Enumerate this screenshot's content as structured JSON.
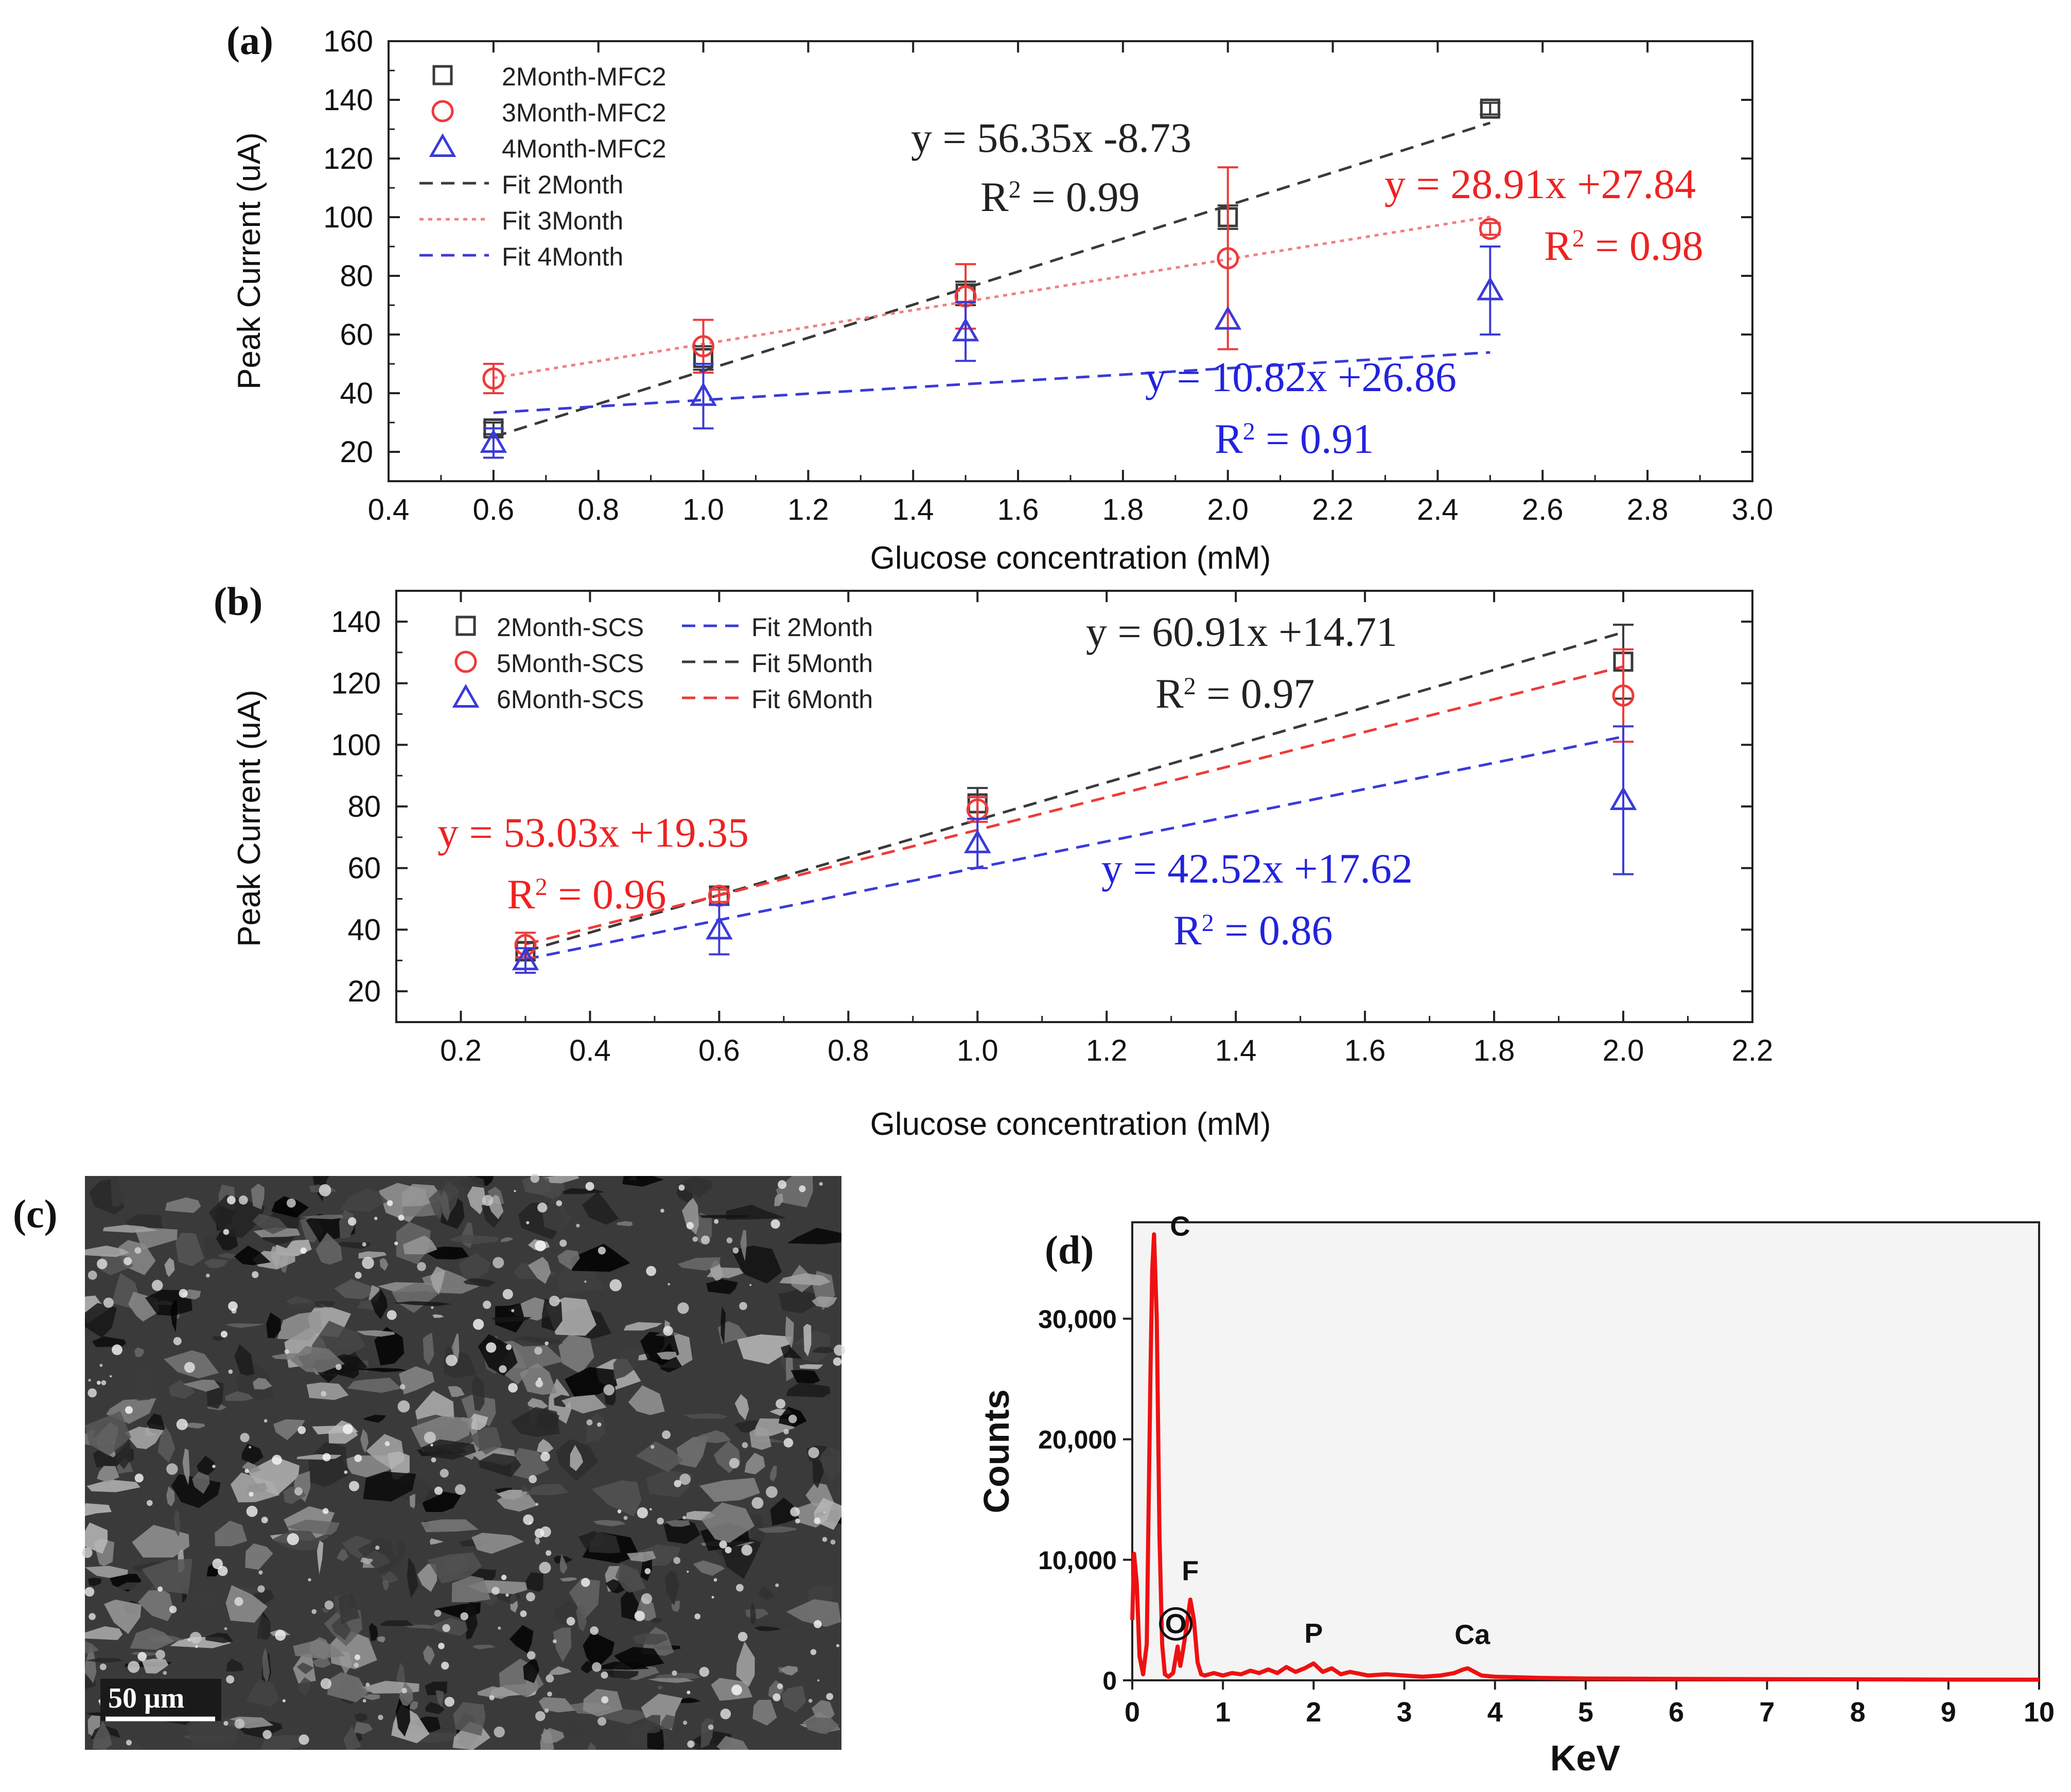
{
  "chart_data": [
    {
      "panel": "(a)",
      "type": "scatter",
      "xlabel": "Glucose concentration (mM)",
      "ylabel": "Peak Current (uA)",
      "xlim": [
        0.4,
        3.0
      ],
      "ylim": [
        10,
        160
      ],
      "xticks": [
        0.4,
        0.6,
        0.8,
        1.0,
        1.2,
        1.4,
        1.6,
        1.8,
        2.0,
        2.2,
        2.4,
        2.6,
        2.8,
        3.0
      ],
      "xtick_labels": [
        "0.4",
        "0.6",
        "0.8",
        "1.0",
        "1.2",
        "1.4",
        "1.6",
        "1.8",
        "2.0",
        "2.2",
        "2.4",
        "2.6",
        "2.8",
        "3.0"
      ],
      "yticks": [
        20,
        40,
        60,
        80,
        100,
        120,
        140,
        160
      ],
      "ytick_labels": [
        "20",
        "40",
        "60",
        "80",
        "100",
        "120",
        "140",
        "160"
      ],
      "legend_position": "top-left",
      "series": [
        {
          "name": "2Month-MFC2",
          "marker": "square",
          "color": "#3a3a3a",
          "x": [
            0.6,
            1.0,
            1.5,
            2.0,
            2.5
          ],
          "y": [
            28,
            52,
            74,
            100,
            137
          ],
          "err": [
            2,
            4,
            4,
            4,
            2
          ]
        },
        {
          "name": "3Month-MFC2",
          "marker": "circle",
          "color": "#ee3a3a",
          "x": [
            0.6,
            1.0,
            1.5,
            2.0,
            2.5
          ],
          "y": [
            45,
            56,
            73,
            86,
            96
          ],
          "err": [
            5,
            9,
            11,
            31,
            2
          ]
        },
        {
          "name": "4Month-MFC2",
          "marker": "triangle",
          "color": "#3a3ad8",
          "x": [
            0.6,
            1.0,
            1.5,
            2.0,
            2.5
          ],
          "y": [
            23,
            39,
            61,
            65,
            75
          ],
          "err": [
            5,
            11,
            10,
            0,
            15
          ]
        }
      ],
      "fits": [
        {
          "name": "Fit 2Month",
          "style": "dash",
          "color": "#3a3a3a",
          "slope": 56.35,
          "intercept": -8.73,
          "x_range": [
            0.6,
            2.5
          ]
        },
        {
          "name": "Fit 3Month",
          "style": "dot",
          "color": "#f08080",
          "slope": 28.91,
          "intercept": 27.84,
          "x_range": [
            0.6,
            2.5
          ]
        },
        {
          "name": "Fit 4Month",
          "style": "dash",
          "color": "#3a3ad8",
          "slope": 10.82,
          "intercept": 26.86,
          "x_range": [
            0.6,
            2.5
          ]
        }
      ],
      "annotations": [
        {
          "eq": "y = 56.35x -8.73",
          "r2": "0.99",
          "color": "#222222"
        },
        {
          "eq": "y = 28.91x +27.84",
          "r2": "0.98",
          "color": "#ee2222"
        },
        {
          "eq": "y = 10.82x +26.86",
          "r2": "0.91",
          "color": "#2222dd"
        }
      ]
    },
    {
      "panel": "(b)",
      "type": "scatter",
      "xlabel": "Glucose concentration (mM)",
      "ylabel": "Peak Current (uA)",
      "xlim": [
        0.1,
        2.2
      ],
      "ylim": [
        10,
        150
      ],
      "xticks": [
        0.2,
        0.4,
        0.6,
        0.8,
        1.0,
        1.2,
        1.4,
        1.6,
        1.8,
        2.0,
        2.2
      ],
      "xtick_labels": [
        "0.2",
        "0.4",
        "0.6",
        "0.8",
        "1.0",
        "1.2",
        "1.4",
        "1.6",
        "1.8",
        "2.0",
        "2.2"
      ],
      "yticks": [
        20,
        40,
        60,
        80,
        100,
        120,
        140
      ],
      "ytick_labels": [
        "20",
        "40",
        "60",
        "80",
        "100",
        "120",
        "140"
      ],
      "legend_position": "top-left",
      "series": [
        {
          "name": "2Month-SCS",
          "marker": "square",
          "color": "#3a3a3a",
          "x": [
            0.3,
            0.6,
            1.0,
            2.0
          ],
          "y": [
            33,
            51,
            81,
            127
          ],
          "err": [
            3,
            3,
            5,
            12
          ]
        },
        {
          "name": "5Month-SCS",
          "marker": "circle",
          "color": "#ee3a3a",
          "x": [
            0.3,
            0.6,
            1.0,
            2.0
          ],
          "y": [
            35,
            51,
            79,
            116
          ],
          "err": [
            4,
            2,
            4,
            15
          ]
        },
        {
          "name": "6Month-SCS",
          "marker": "triangle",
          "color": "#3a3ad8",
          "x": [
            0.3,
            0.6,
            1.0,
            2.0
          ],
          "y": [
            30,
            40,
            68,
            82
          ],
          "err": [
            4,
            8,
            8,
            24
          ]
        }
      ],
      "fits": [
        {
          "name": "Fit 2Month",
          "style": "dash",
          "color": "#3a3ad8",
          "slope": 42.52,
          "intercept": 17.62,
          "x_range": [
            0.3,
            2.0
          ]
        },
        {
          "name": "Fit 5Month",
          "style": "dash",
          "color": "#3a3a3a",
          "slope": 60.91,
          "intercept": 14.71,
          "x_range": [
            0.3,
            2.0
          ]
        },
        {
          "name": "Fit 6Month",
          "style": "dash",
          "color": "#ee3a3a",
          "slope": 53.03,
          "intercept": 19.35,
          "x_range": [
            0.3,
            2.0
          ]
        }
      ],
      "annotations": [
        {
          "eq": "y = 60.91x +14.71",
          "r2": "0.97",
          "color": "#222222"
        },
        {
          "eq": "y = 53.03x +19.35",
          "r2": "0.96",
          "color": "#ee2222"
        },
        {
          "eq": "y = 42.52x +17.62",
          "r2": "0.86",
          "color": "#2222dd"
        }
      ]
    },
    {
      "panel": "(d)",
      "type": "line",
      "xlabel": "KeV",
      "ylabel": "Counts",
      "xlim": [
        0,
        10
      ],
      "ylim": [
        0,
        38000
      ],
      "xticks": [
        0,
        1,
        2,
        3,
        4,
        5,
        6,
        7,
        8,
        9,
        10
      ],
      "xtick_labels": [
        "0",
        "1",
        "2",
        "3",
        "4",
        "5",
        "6",
        "7",
        "8",
        "9",
        "10"
      ],
      "yticks": [
        0,
        10000,
        20000,
        30000
      ],
      "ytick_labels": [
        "0",
        "10,000",
        "20,000",
        "30,000"
      ],
      "color": "#ee1111",
      "x": [
        0.0,
        0.02,
        0.05,
        0.08,
        0.12,
        0.16,
        0.2,
        0.22,
        0.24,
        0.27,
        0.3,
        0.33,
        0.36,
        0.4,
        0.45,
        0.5,
        0.53,
        0.56,
        0.6,
        0.64,
        0.68,
        0.72,
        0.76,
        0.8,
        0.9,
        1.0,
        1.1,
        1.2,
        1.3,
        1.4,
        1.5,
        1.6,
        1.7,
        1.8,
        1.9,
        2.0,
        2.1,
        2.2,
        2.3,
        2.4,
        2.6,
        2.8,
        3.0,
        3.2,
        3.4,
        3.55,
        3.65,
        3.7,
        3.75,
        3.85,
        4.0,
        4.5,
        5.0,
        6.0,
        7.0,
        8.0,
        9.0,
        10.0
      ],
      "y": [
        5000,
        10500,
        8000,
        2000,
        500,
        3000,
        25000,
        34000,
        37000,
        30000,
        12000,
        3000,
        500,
        300,
        600,
        2800,
        1200,
        2500,
        4500,
        6700,
        5000,
        1500,
        500,
        400,
        600,
        400,
        600,
        500,
        800,
        600,
        900,
        600,
        1100,
        700,
        1000,
        1400,
        700,
        1000,
        500,
        700,
        400,
        500,
        400,
        300,
        400,
        600,
        900,
        1000,
        800,
        400,
        300,
        200,
        150,
        120,
        100,
        80,
        60,
        50
      ],
      "peak_labels": [
        {
          "label": "C",
          "x": 0.3,
          "y": 36800
        },
        {
          "label": "O",
          "x": 0.48,
          "y": 3400
        },
        {
          "label": "F",
          "x": 0.64,
          "y": 7800
        },
        {
          "label": "P",
          "x": 2.0,
          "y": 2600
        },
        {
          "label": "Ca",
          "x": 3.75,
          "y": 2500
        }
      ]
    }
  ],
  "panel_labels": {
    "a": "(a)",
    "b": "(b)",
    "c": "(c)",
    "d": "(d)"
  },
  "r2_prefix": "R",
  "r2_suffix": " = ",
  "scale_bar_label": "50 μm"
}
